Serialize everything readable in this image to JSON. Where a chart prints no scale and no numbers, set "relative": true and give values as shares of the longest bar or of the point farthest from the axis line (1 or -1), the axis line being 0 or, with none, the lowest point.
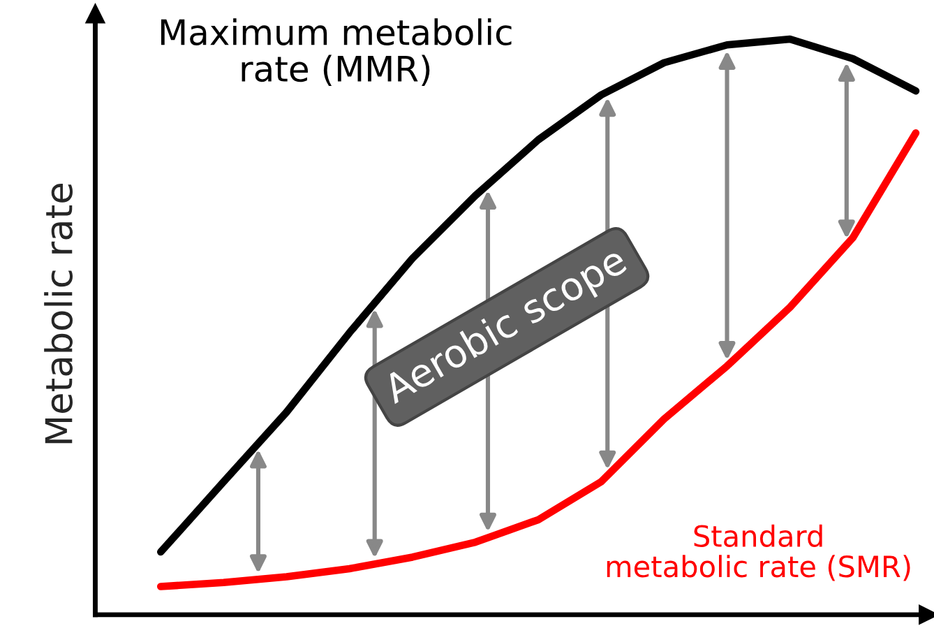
{
  "chart_data": {
    "type": "line",
    "relative": true,
    "ylabel": "Metabolic rate",
    "categories": [
      null,
      null,
      null,
      null,
      null,
      null,
      null,
      null,
      null,
      null,
      null,
      null,
      null
    ],
    "series": [
      {
        "name": "Maximum metabolic\nrate (MMR)",
        "color": "#000000",
        "values": [
          0.109,
          0.231,
          0.352,
          0.49,
          0.619,
          0.728,
          0.825,
          0.903,
          0.959,
          0.99,
          1.0,
          0.966,
          0.91
        ]
      },
      {
        "name": "Standard\nmetabolic rate (SMR)",
        "color": "#ff0000",
        "values": [
          0.049,
          0.056,
          0.066,
          0.08,
          0.1,
          0.126,
          0.165,
          0.231,
          0.34,
          0.432,
          0.534,
          0.655,
          0.837
        ]
      }
    ],
    "annotations": [
      "Aerobic scope"
    ],
    "legend": false,
    "marker": "none",
    "line_style": "solid"
  }
}
